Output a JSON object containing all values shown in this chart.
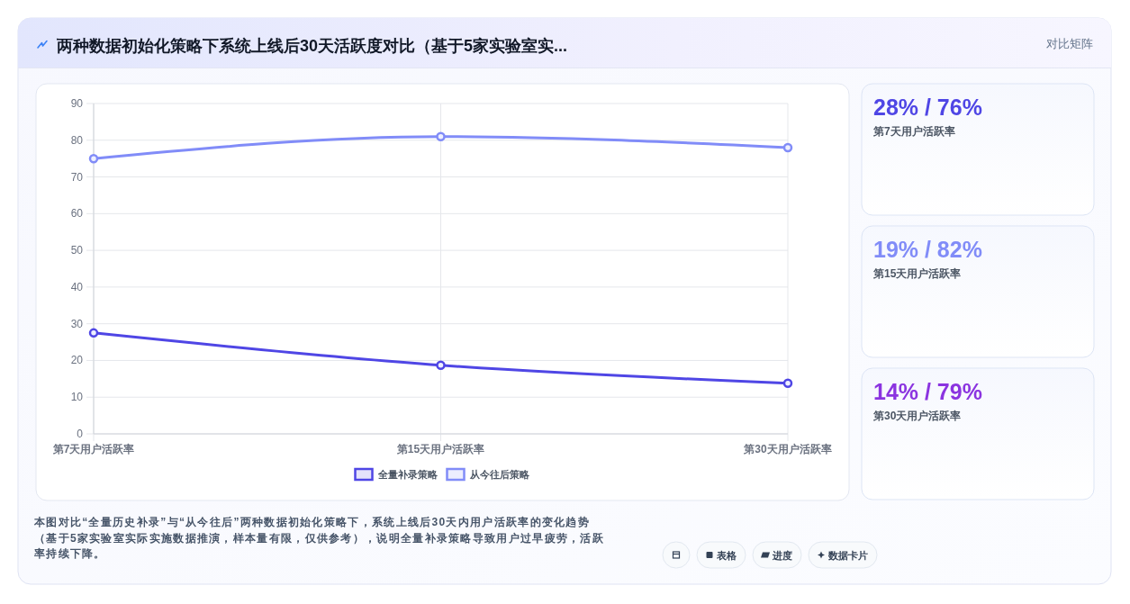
{
  "chart_data": [
    {
      "type": "line",
      "title": "两种数据初始化策略下系统上线后30天活跃度对比（基于5家实验室实...",
      "categories": [
        "第7天用户活跃率",
        "第15天用户活跃率",
        "第30天用户活跃率"
      ],
      "series": [
        {
          "name": "全量补录策略",
          "color": "#4f46e5",
          "values": [
            27.5,
            18.7,
            13.8
          ]
        },
        {
          "name": "从今往后策略",
          "color": "#818cf8",
          "values": [
            75,
            81,
            78
          ]
        }
      ],
      "ylim": [
        0,
        90
      ],
      "yticks": [
        0,
        10,
        20,
        30,
        40,
        50,
        60,
        70,
        80,
        90
      ],
      "grid": true,
      "legend": "bottom",
      "marker": "circle",
      "line_style": "solid",
      "annotations": [
        "对比矩阵",
        "本图对比“全量历史补录”与“从今往后”两种数据初始化策略下，系统上线后30天内用户活跃率的变化趋势（基于5家实验室实际实施数据推演，样本量有限，仅供参考），说明全量补录策略导致用户过早疲劳，活跃率持续下降。",
        "表格",
        "进度",
        "数据卡片"
      ]
    },
    {
      "type": "other",
      "title": "28% / 76%",
      "subtitle": "第7天用户活跃率"
    },
    {
      "type": "other",
      "title": "19% / 82%",
      "subtitle": "第15天用户活跃率"
    },
    {
      "type": "other",
      "title": "14% / 79%",
      "subtitle": "第30天用户活跃率"
    }
  ]
}
